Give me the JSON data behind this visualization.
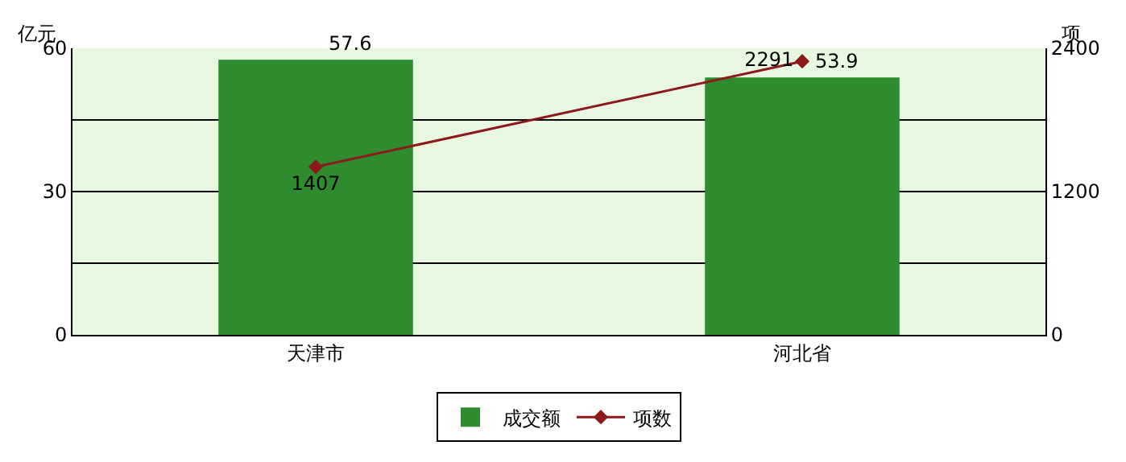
{
  "chart_data": {
    "type": "bar",
    "categories": [
      "天津市",
      "河北省"
    ],
    "ylabel": "亿元",
    "y2label": "项",
    "ylim": [
      0,
      60
    ],
    "yticks": [
      0,
      {
        "value": 15,
        "label": null
      },
      30,
      {
        "value": 45,
        "label": null
      },
      60
    ],
    "y2lim": [
      0,
      2400
    ],
    "y2ticks": [
      0,
      1200,
      2400
    ],
    "grid": "y",
    "legend": "bottom",
    "data_labels": true,
    "series": [
      {
        "name": "成交额",
        "color": "#2e8b2e",
        "values": [
          57.6,
          53.9
        ]
      },
      {
        "name": "项数",
        "type": "line",
        "axis": "y2",
        "color": "#8b1a1a",
        "marker": "diamond",
        "values": [
          1407,
          2291
        ]
      }
    ]
  }
}
